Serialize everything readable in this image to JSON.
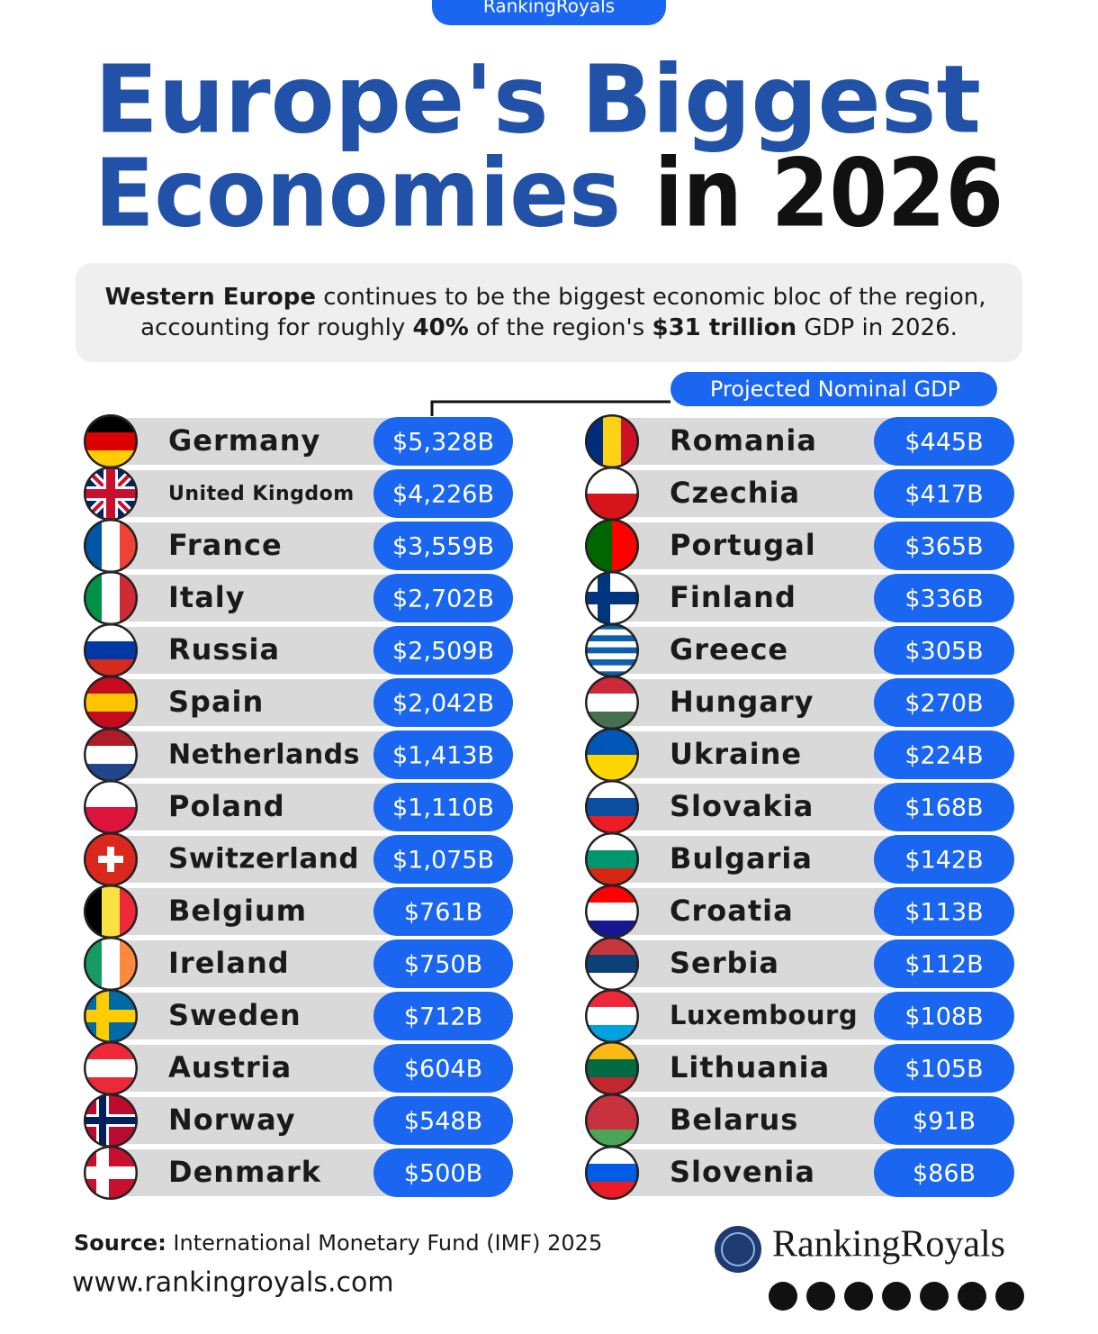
{
  "header": {
    "badge": "RankingRoyals",
    "title": [
      "Europe's Biggest",
      "Economies",
      "in 2026"
    ]
  },
  "subtitle": [
    [
      "Western Europe",
      " continues to be the biggest economic bloc of the region,"
    ],
    [
      "accounting for roughly ",
      "40%",
      " of the region's ",
      "$31 trillion",
      " GDP in 2026."
    ]
  ],
  "legend": "Projected Nominal GDP",
  "table": {
    "left": [
      [
        "Germany",
        "$5,328B"
      ],
      [
        "United Kingdom",
        "$4,226B"
      ],
      [
        "France",
        "$3,559B"
      ],
      [
        "Italy",
        "$2,702B"
      ],
      [
        "Russia",
        "$2,509B"
      ],
      [
        "Spain",
        "$2,042B"
      ],
      [
        "Netherlands",
        "$1,413B"
      ],
      [
        "Poland",
        "$1,110B"
      ],
      [
        "Switzerland",
        "$1,075B"
      ],
      [
        "Belgium",
        "$761B"
      ],
      [
        "Ireland",
        "$750B"
      ],
      [
        "Sweden",
        "$712B"
      ],
      [
        "Austria",
        "$604B"
      ],
      [
        "Norway",
        "$548B"
      ],
      [
        "Denmark",
        "$500B"
      ]
    ],
    "right": [
      [
        "Romania",
        "$445B"
      ],
      [
        "Czechia",
        "$417B"
      ],
      [
        "Portugal",
        "$365B"
      ],
      [
        "Finland",
        "$336B"
      ],
      [
        "Greece",
        "$305B"
      ],
      [
        "Hungary",
        "$270B"
      ],
      [
        "Ukraine",
        "$224B"
      ],
      [
        "Slovakia",
        "$168B"
      ],
      [
        "Bulgaria",
        "$142B"
      ],
      [
        "Croatia",
        "$113B"
      ],
      [
        "Serbia",
        "$112B"
      ],
      [
        "Luxembourg",
        "$108B"
      ],
      [
        "Lithuania",
        "$105B"
      ],
      [
        "Belarus",
        "$91B"
      ],
      [
        "Slovenia",
        "$86B"
      ]
    ]
  },
  "footer": {
    "source": [
      "Source:",
      " International Monetary Fund (IMF) 2025"
    ],
    "website": "www.rankingroyals.com",
    "brand": "RankingRoyals"
  }
}
